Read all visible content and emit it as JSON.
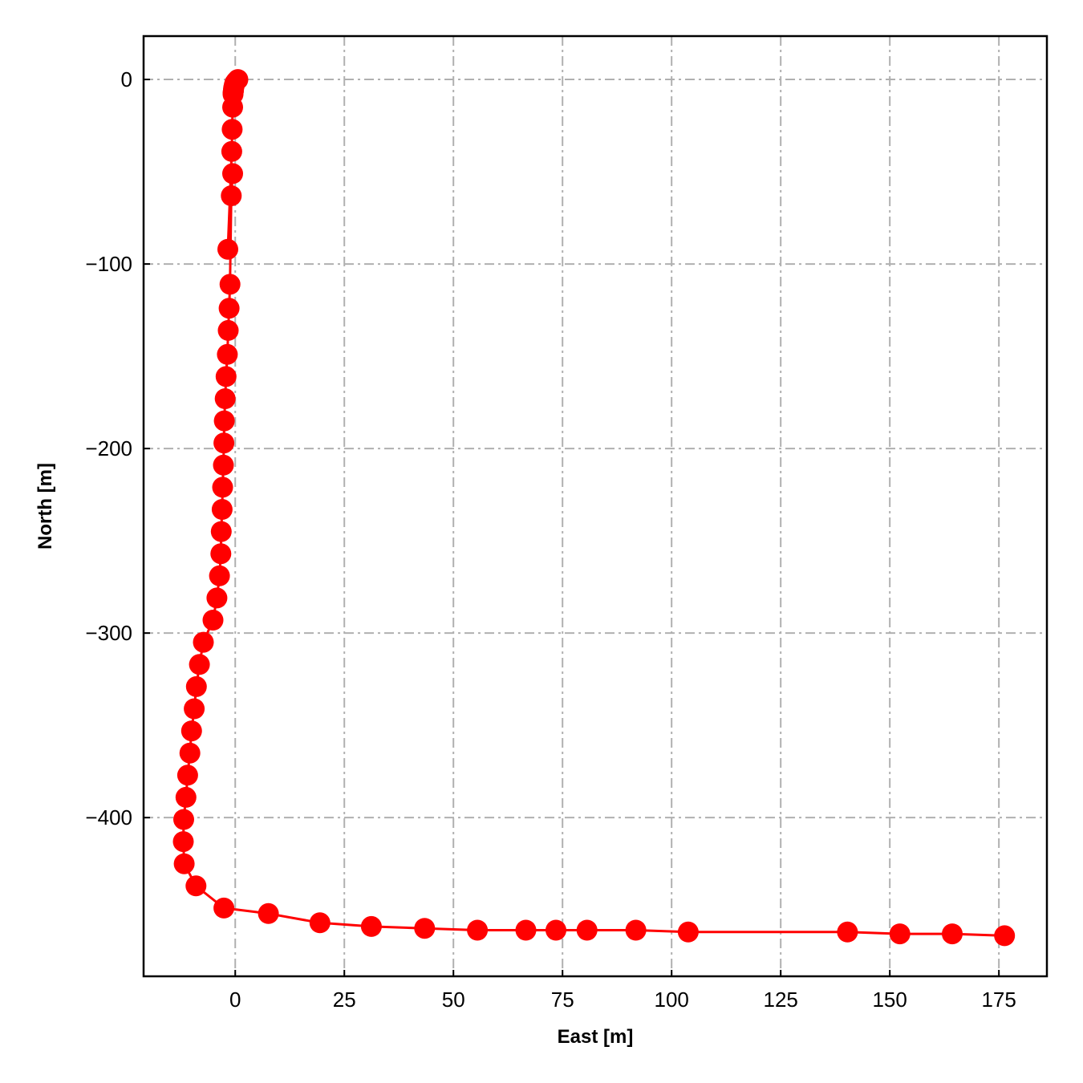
{
  "chart_data": {
    "type": "line",
    "xlabel": "East [m]",
    "ylabel": "North [m]",
    "xlim": [
      -21,
      186
    ],
    "ylim": [
      -486,
      23.5
    ],
    "x_ticks": [
      0,
      25,
      50,
      75,
      100,
      125,
      150,
      175
    ],
    "y_ticks": [
      0,
      -100,
      -200,
      -300,
      -400
    ],
    "x_tick_labels": [
      "0",
      "25",
      "50",
      "75",
      "100",
      "125",
      "150",
      "175"
    ],
    "y_tick_labels": [
      "0",
      "−100",
      "−200",
      "−300",
      "−400"
    ],
    "grid": true,
    "grid_style": "dash-dot",
    "series": [
      {
        "color": "#ff0000",
        "marker": "circle",
        "x": [
          0.6,
          0.2,
          -0.1,
          -0.2,
          -0.3,
          -0.4,
          -0.4,
          -0.5,
          -0.5,
          -0.6,
          -0.7,
          -0.8,
          -1.7,
          -0.6,
          -0.9,
          -1.2,
          -1.4,
          -1.6,
          -1.8,
          -2.1,
          -2.3,
          -2.5,
          -2.6,
          -2.7,
          -2.9,
          -3.0,
          -3.2,
          -3.3,
          -3.6,
          -4.2,
          -5.1,
          -7.3,
          -8.2,
          -8.9,
          -9.4,
          -10.0,
          -10.4,
          -10.9,
          -11.3,
          -11.8,
          -11.9,
          -11.7,
          -9.0,
          -2.6,
          7.6,
          19.4,
          31.2,
          43.4,
          55.5,
          66.6,
          73.5,
          80.6,
          91.8,
          103.8,
          140.3,
          152.3,
          164.3,
          176.3
        ],
        "y": [
          0,
          -1,
          -2,
          -3,
          -4,
          -5,
          -6,
          -7,
          -8,
          -15,
          -27,
          -39,
          -92,
          -51,
          -63,
          -111,
          -124,
          -136,
          -149,
          -161,
          -173,
          -185,
          -197,
          -209,
          -221,
          -233,
          -245,
          -257,
          -269,
          -281,
          -293,
          -305,
          -317,
          -329,
          -341,
          -353,
          -365,
          -377,
          -389,
          -401,
          -413,
          -425,
          -437,
          -449,
          -452,
          -457,
          -459,
          -460,
          -461,
          -461,
          -461,
          -461,
          -461,
          -462,
          -462,
          -463,
          -463,
          -464
        ]
      }
    ]
  }
}
